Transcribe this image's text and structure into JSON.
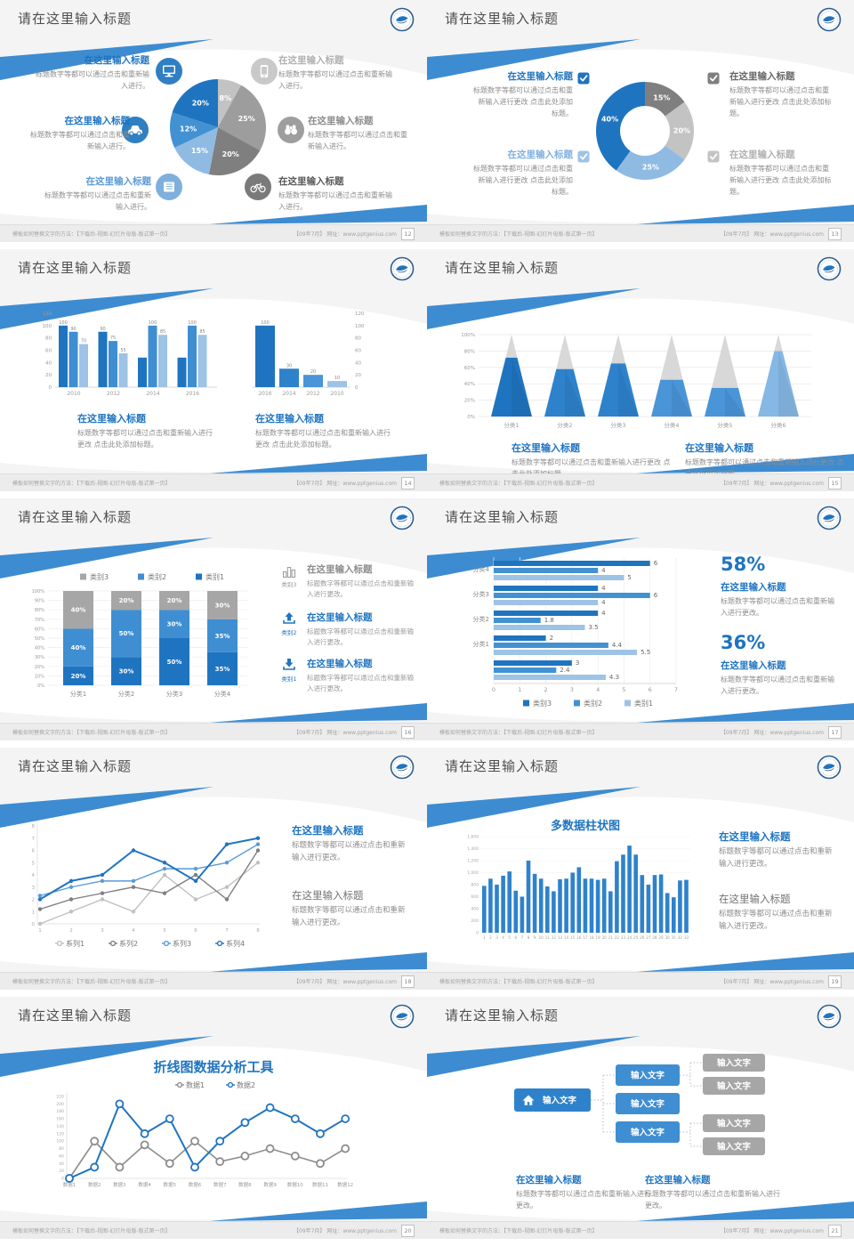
{
  "common": {
    "slide_title": "请在这里输入标题",
    "item_title": "在这里输入标题",
    "body_short": "标题数字等都可以通过点击和重新输入进行。",
    "body_add": "标题数字等都可以通过点击和重新输入进行更改 点击此处添加标题。",
    "body_change": "标题数字等都可以通过点击和重新输入进行更改。",
    "footer_left": "模板如何替换文字的方法：【下载后-视图-幻灯片母版-版式第一页】",
    "footer_right": "【09年7月】 网址：www.pptgenius.com",
    "logo_name": "school-emblem-logo"
  },
  "colors": {
    "blue_dark": "#1f74c0",
    "blue_mid": "#4292d3",
    "blue_light": "#9dc3e6",
    "blue_soft": "#7fb0dd",
    "gray_dark": "#7f7f7f",
    "gray_mid": "#9d9d9d",
    "gray_light": "#c3c3c3",
    "title_gray": "#595959",
    "body_gray": "#8c8c8c",
    "slide_bg": "#f4f4f4",
    "ribbon": "#3d8cd1"
  },
  "chart_data": [
    {
      "type": "pie",
      "values": [
        8,
        25,
        20,
        15,
        12,
        20
      ],
      "labels": [
        "8%",
        "25%",
        "20%",
        "15%",
        "12%",
        "20%"
      ],
      "colors": [
        "#c3c3c3",
        "#9d9d9d",
        "#7f7f7f",
        "#8fbbe3",
        "#4292d3",
        "#1f74c0"
      ],
      "start_angle_deg": 0,
      "clockwise": true
    },
    {
      "type": "pie",
      "subtype": "donut",
      "values": [
        15,
        20,
        25,
        40
      ],
      "labels": [
        "15%",
        "20%",
        "25%",
        "40%"
      ],
      "colors": [
        "#7f7f7f",
        "#c3c3c3",
        "#8fbbe3",
        "#1f74c0"
      ],
      "start_angle_deg": 0,
      "clockwise": true
    },
    {
      "type": "bar",
      "categories": [
        "2010",
        "2012",
        "2014",
        "2016"
      ],
      "series": [
        {
          "name": "series-dark",
          "color": "#1f74c0",
          "values": [
            100,
            90,
            48,
            48
          ]
        },
        {
          "name": "series-mid",
          "color": "#3f8ed2",
          "values": [
            90,
            75,
            100,
            100
          ]
        },
        {
          "name": "series-light",
          "color": "#9dc3e6",
          "values": [
            70,
            55,
            85,
            85
          ]
        }
      ],
      "value_labels": [
        [
          "100",
          "90",
          "70"
        ],
        [
          "90",
          "75",
          "55"
        ],
        [
          "",
          "100",
          "85"
        ],
        [
          "",
          "100",
          "85"
        ]
      ],
      "ylim": [
        0,
        120
      ],
      "yticks": [
        "0",
        "20",
        "40",
        "60",
        "80",
        "100",
        "120"
      ]
    },
    {
      "type": "bar",
      "categories": [
        "2016",
        "2014",
        "2012",
        "2010"
      ],
      "values": [
        100,
        30,
        20,
        10
      ],
      "value_labels": [
        "100",
        "30",
        "20",
        "10"
      ],
      "colors": [
        "#1f74c0",
        "#2e82cc",
        "#4a94d8",
        "#9dc3e6"
      ],
      "ylim": [
        0,
        120
      ],
      "yticks": [
        "0",
        "20",
        "40",
        "60",
        "80",
        "100",
        "120"
      ],
      "axis_side": "right"
    },
    {
      "type": "pyramid",
      "categories": [
        "分类1",
        "分类2",
        "分类3",
        "分类4",
        "分类5",
        "分类6"
      ],
      "fill_percent": [
        72,
        58,
        65,
        45,
        35,
        80
      ],
      "colors": [
        "#1f74c0",
        "#2e82cc",
        "#2e82cc",
        "#4a94d8",
        "#4a94d8",
        "#85b8e4"
      ],
      "top_color": "#d8d8d8",
      "yticks": [
        "0%",
        "20%",
        "40%",
        "60%",
        "80%",
        "100%"
      ]
    },
    {
      "type": "bar",
      "subtype": "stacked100",
      "categories": [
        "分类1",
        "分类2",
        "分类3",
        "分类4"
      ],
      "series": [
        {
          "name": "类别1",
          "color": "#1f74c0",
          "values": [
            20,
            30,
            50,
            35
          ]
        },
        {
          "name": "类别2",
          "color": "#3f8ed2",
          "values": [
            40,
            50,
            30,
            35
          ]
        },
        {
          "name": "类别3",
          "color": "#a6a6a6",
          "values": [
            40,
            20,
            20,
            30
          ]
        }
      ],
      "legend_order": [
        "类别3",
        "类别2",
        "类别1"
      ],
      "legend_colors": [
        "#a6a6a6",
        "#3f8ed2",
        "#1f74c0"
      ],
      "yticks": [
        "0%",
        "10%",
        "20%",
        "30%",
        "40%",
        "50%",
        "60%",
        "70%",
        "80%",
        "90%",
        "100%"
      ]
    },
    {
      "type": "bar",
      "subtype": "horizontal",
      "groups": [
        "分类4",
        "分类3",
        "分类2",
        "分类1",
        ""
      ],
      "series": [
        {
          "name": "类别3",
          "color": "#1f74c0",
          "values": [
            6,
            4,
            4,
            2,
            3
          ]
        },
        {
          "name": "类别2",
          "color": "#4292d3",
          "values": [
            4,
            6,
            1.8,
            4.4,
            2.4
          ]
        },
        {
          "name": "类别1",
          "color": "#9dc3e6",
          "values": [
            5,
            4,
            3.5,
            5.5,
            4.3
          ]
        }
      ],
      "xticks": [
        "0",
        "1",
        "2",
        "3",
        "4",
        "5",
        "6",
        "7"
      ],
      "xlim": [
        0,
        7
      ]
    },
    {
      "type": "line",
      "x": [
        "1",
        "2",
        "3",
        "4",
        "5",
        "6",
        "7",
        "8"
      ],
      "ylim": [
        0,
        8
      ],
      "yticks": [
        "0",
        "1",
        "2",
        "3",
        "4",
        "5",
        "6",
        "7",
        "8"
      ],
      "series": [
        {
          "name": "系列1",
          "color": "#c0c0c0",
          "values": [
            0,
            1,
            2,
            1,
            4,
            2,
            3,
            5
          ]
        },
        {
          "name": "系列2",
          "color": "#7f7f7f",
          "values": [
            1.2,
            2,
            2.5,
            3,
            2.5,
            4,
            2,
            6
          ]
        },
        {
          "name": "系列3",
          "color": "#5b9bd5",
          "values": [
            2.3,
            3,
            3.5,
            3.5,
            4.5,
            4.5,
            5,
            6.5
          ]
        },
        {
          "name": "系列4",
          "color": "#1f74c0",
          "values": [
            2,
            3.5,
            4,
            6,
            5,
            3.5,
            6.5,
            7
          ]
        }
      ]
    },
    {
      "type": "bar",
      "title": "多数据柱状图",
      "x_labels": [
        "1",
        "2",
        "3",
        "4",
        "5",
        "6",
        "7",
        "8",
        "9",
        "10",
        "11",
        "12",
        "13",
        "14",
        "15",
        "16",
        "17",
        "18",
        "19",
        "20",
        "21",
        "22",
        "23",
        "24",
        "25",
        "26",
        "27",
        "28",
        "29",
        "30",
        "31",
        "32",
        "33"
      ],
      "values": [
        780,
        900,
        800,
        950,
        1020,
        700,
        600,
        1200,
        980,
        900,
        770,
        690,
        890,
        900,
        1000,
        1090,
        900,
        900,
        880,
        900,
        690,
        1190,
        1300,
        1450,
        1300,
        960,
        800,
        960,
        970,
        660,
        590,
        870,
        880
      ],
      "color": "#2e82cc",
      "ylim": [
        0,
        1600
      ],
      "yticks": [
        "0",
        "200",
        "400",
        "600",
        "800",
        "1,000",
        "1,200",
        "1,400",
        "1,600"
      ]
    },
    {
      "type": "line",
      "title": "折线图数据分析工具",
      "categories": [
        "数据1",
        "数据2",
        "数据3",
        "数据4",
        "数据5",
        "数据6",
        "数据7",
        "数据8",
        "数据9",
        "数据10",
        "数据11",
        "数据12"
      ],
      "ylim": [
        0,
        220
      ],
      "yticks": [
        "0",
        "20",
        "40",
        "60",
        "80",
        "100",
        "120",
        "140",
        "160",
        "180",
        "200",
        "220"
      ],
      "series": [
        {
          "name": "数据1",
          "color": "#8c8c8c",
          "values": [
            0,
            100,
            30,
            90,
            40,
            100,
            45,
            60,
            80,
            60,
            40,
            80
          ]
        },
        {
          "name": "数据2",
          "color": "#1f74c0",
          "values": [
            0,
            30,
            200,
            120,
            160,
            30,
            100,
            150,
            190,
            160,
            120,
            160
          ]
        }
      ]
    }
  ],
  "slides": [
    {
      "id": "pie-callouts",
      "page": "12",
      "chart_index": 0,
      "items": [
        {
          "side": "left",
          "slot": 0,
          "icon": "monitor",
          "icon_color": "#2f7fc1",
          "title": "在这里输入标题",
          "title_color": "#1f74c0",
          "body": "标题数字等都可以通过点击和重新输入进行。"
        },
        {
          "side": "left",
          "slot": 1,
          "icon": "car",
          "icon_color": "#2f7fc1",
          "title": "在这里输入标题",
          "title_color": "#1f74c0",
          "body": "标题数字等都可以通过点击和重新输入进行。"
        },
        {
          "side": "left",
          "slot": 2,
          "icon": "book",
          "icon_color": "#7fb0dd",
          "title": "在这里输入标题",
          "title_color": "#5b9bd5",
          "body": "标题数字等都可以通过点击和重新输入进行。"
        },
        {
          "side": "right",
          "slot": 0,
          "icon": "phone",
          "icon_color": "#c9c9c9",
          "title": "在这里输入标题",
          "title_color": "#b0b0b0",
          "body": "标题数字等都可以通过点击和重新输入进行。"
        },
        {
          "side": "right",
          "slot": 1,
          "icon": "binoculars",
          "icon_color": "#9e9e9e",
          "title": "在这里输入标题",
          "title_color": "#8c8c8c",
          "body": "标题数字等都可以通过点击和重新输入进行。"
        },
        {
          "side": "right",
          "slot": 2,
          "icon": "bike",
          "icon_color": "#7a7a7a",
          "title": "在这里输入标题",
          "title_color": "#595959",
          "body": "标题数字等都可以通过点击和重新输入进行。"
        }
      ]
    },
    {
      "id": "donut-checklist",
      "page": "13",
      "chart_index": 1,
      "items": [
        {
          "side": "left",
          "slot": 0,
          "check_color": "#1f74c0",
          "title": "在这里输入标题",
          "title_color": "#1f74c0",
          "body": "标题数字等都可以通过点击和重新输入进行更改 点击此处添加标题。"
        },
        {
          "side": "left",
          "slot": 1,
          "check_color": "#9dc3e6",
          "title": "在这里输入标题",
          "title_color": "#7fb0dd",
          "body": "标题数字等都可以通过点击和重新输入进行更改 点击此处添加标题。"
        },
        {
          "side": "right",
          "slot": 0,
          "check_color": "#7f7f7f",
          "title": "在这里输入标题",
          "title_color": "#666666",
          "body": "标题数字等都可以通过点击和重新输入进行更改 点击此处添加标题。"
        },
        {
          "side": "right",
          "slot": 1,
          "check_color": "#c3c3c3",
          "title": "在这里输入标题",
          "title_color": "#b0b0b0",
          "body": "标题数字等都可以通过点击和重新输入进行更改 点击此处添加标题。"
        }
      ]
    },
    {
      "id": "dual-bar-charts",
      "page": "14",
      "chart_index": 2,
      "chart_index2": 3,
      "blocks": [
        {
          "title": "在这里输入标题",
          "title_color": "#1f74c0",
          "body": "标题数字等都可以通过点击和重新输入进行更改 点击此处添加标题。"
        },
        {
          "title": "在这里输入标题",
          "title_color": "#1f74c0",
          "body": "标题数字等都可以通过点击和重新输入进行更改 点击此处添加标题。"
        }
      ]
    },
    {
      "id": "pyramid-chart",
      "page": "15",
      "chart_index": 4,
      "blocks": [
        {
          "title": "在这里输入标题",
          "title_color": "#1f74c0",
          "body": "标题数字等都可以通过点击和重新输入进行更改 点击此处添加标题。"
        },
        {
          "title": "在这里输入标题",
          "title_color": "#1f74c0",
          "body": "标题数字等都可以通过点击和重新输入进行更改 点击此处添加标题。"
        }
      ]
    },
    {
      "id": "stacked-bar",
      "page": "16",
      "chart_index": 5,
      "items": [
        {
          "icon": "barchart",
          "icon_label": "类别3",
          "title": "在这里输入标题",
          "title_color": "#8c8c8c",
          "body": "标题数字等都可以通过点击和重新输入进行更改。"
        },
        {
          "icon": "upload",
          "icon_label": "类别2",
          "title": "在这里输入标题",
          "title_color": "#1f74c0",
          "body": "标题数字等都可以通过点击和重新输入进行更改。"
        },
        {
          "icon": "download",
          "icon_label": "类别1",
          "title": "在这里输入标题",
          "title_color": "#1f74c0",
          "body": "标题数字等都可以通过点击和重新输入进行更改。"
        }
      ]
    },
    {
      "id": "hbar-stats",
      "page": "17",
      "chart_index": 6,
      "stats": [
        {
          "pct": "58%",
          "title": "在这里输入标题",
          "body": "标题数字等都可以通过点击和重新输入进行更改。"
        },
        {
          "pct": "36%",
          "title": "在这里输入标题",
          "body": "标题数字等都可以通过点击和重新输入进行更改。"
        }
      ]
    },
    {
      "id": "multi-line",
      "page": "18",
      "chart_index": 7,
      "blocks": [
        {
          "title": "在这里输入标题",
          "title_color": "#1f74c0",
          "bold": true,
          "body": "标题数字等都可以通过点击和重新输入进行更改。"
        },
        {
          "title": "在这里输入标题",
          "title_color": "#737373",
          "bold": false,
          "body": "标题数字等都可以通过点击和重新输入进行更改。"
        }
      ]
    },
    {
      "id": "column-chart",
      "page": "19",
      "chart_index": 8,
      "blocks": [
        {
          "title": "在这里输入标题",
          "title_color": "#1f74c0",
          "bold": true,
          "body": "标题数字等都可以通过点击和重新输入进行更改。"
        },
        {
          "title": "在这里输入标题",
          "title_color": "#737373",
          "bold": false,
          "body": "标题数字等都可以通过点击和重新输入进行更改。"
        }
      ]
    },
    {
      "id": "line-tool",
      "page": "20",
      "chart_index": 9,
      "blocks": []
    },
    {
      "id": "tree-diagram",
      "page": "21",
      "tree": {
        "root": "输入文字",
        "children": [
          "输入文字",
          "输入文字",
          "输入文字"
        ],
        "leaves": [
          "输入文字",
          "输入文字",
          "输入文字",
          "输入文字"
        ],
        "root_color": "#2e82cc",
        "child_color": "#3f8ed2",
        "leaf_color": "#a6a6a6"
      },
      "blocks": [
        {
          "title": "在这里输入标题",
          "title_color": "#1f74c0",
          "body": "标题数字等都可以通过点击和重新输入进行更改。"
        },
        {
          "title": "在这里输入标题",
          "title_color": "#1f74c0",
          "body": "标题数字等都可以通过点击和重新输入进行更改。"
        }
      ]
    }
  ]
}
